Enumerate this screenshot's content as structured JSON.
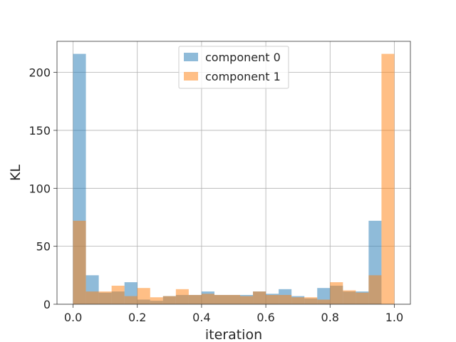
{
  "chart_data": {
    "type": "bar",
    "subtype": "overlapping-histogram",
    "title": "",
    "xlabel": "iteration",
    "ylabel": "KL",
    "xlim": [
      -0.05,
      1.05
    ],
    "ylim": [
      0,
      226.8
    ],
    "xticks": [
      "0.0",
      "0.2",
      "0.4",
      "0.6",
      "0.8",
      "1.0"
    ],
    "xtick_values": [
      0.0,
      0.2,
      0.4,
      0.6,
      0.8,
      1.0
    ],
    "yticks": [
      "0",
      "50",
      "100",
      "150",
      "200"
    ],
    "ytick_values": [
      0,
      50,
      100,
      150,
      200
    ],
    "grid": true,
    "legend_position": "top-center",
    "bin_edges": [
      0.0,
      0.04,
      0.08,
      0.12,
      0.16,
      0.2,
      0.24,
      0.28,
      0.32,
      0.36,
      0.4,
      0.44,
      0.48,
      0.52,
      0.56,
      0.6,
      0.64,
      0.68,
      0.72,
      0.76,
      0.8,
      0.84,
      0.88,
      0.92,
      0.96,
      1.0
    ],
    "series": [
      {
        "name": "component 0",
        "color": "#1f77b4",
        "opacity": 0.5,
        "values": [
          216,
          25,
          10,
          11,
          19,
          4,
          3,
          7,
          8,
          8,
          11,
          8,
          8,
          8,
          11,
          9,
          13,
          7,
          5,
          14,
          16,
          11,
          11,
          72,
          0
        ]
      },
      {
        "name": "component 1",
        "color": "#ff7f0e",
        "opacity": 0.5,
        "values": [
          72,
          11,
          11,
          16,
          7,
          14,
          6,
          7,
          13,
          8,
          9,
          8,
          8,
          7,
          11,
          8,
          8,
          6,
          6,
          4,
          19,
          12,
          10,
          25,
          216
        ]
      }
    ]
  }
}
